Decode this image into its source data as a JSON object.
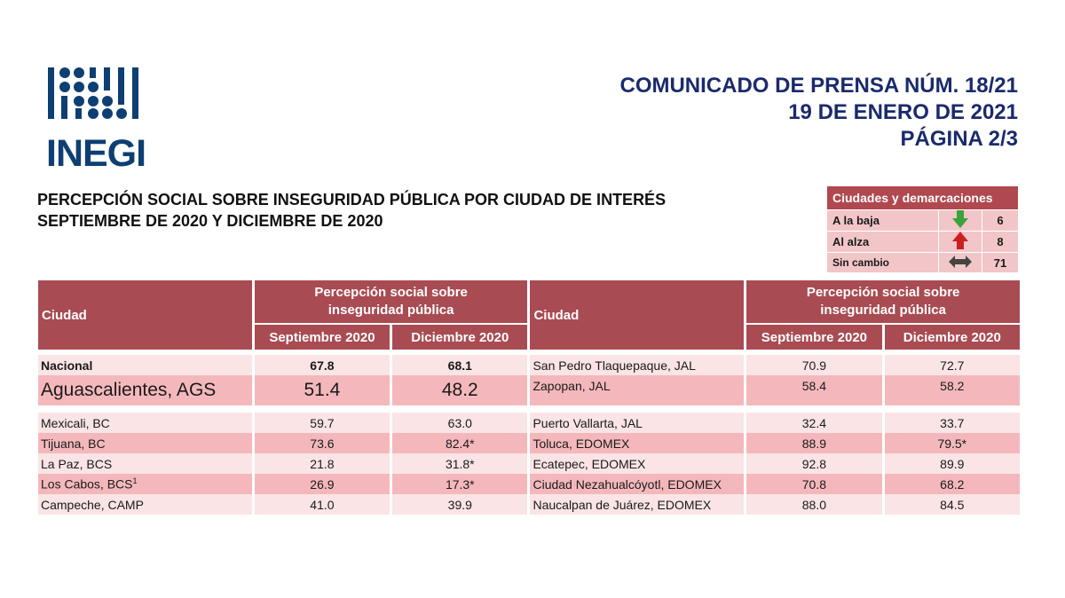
{
  "logo": {
    "text": "INEGI"
  },
  "press": {
    "line1": "COMUNICADO DE PRENSA NÚM. 18/21",
    "line2": "19 DE ENERO DE 2021",
    "line3": "PÁGINA 2/3"
  },
  "title": {
    "line1": "PERCEPCIÓN SOCIAL SOBRE INSEGURIDAD PÚBLICA POR CIUDAD DE INTERÉS",
    "line2": "SEPTIEMBRE DE 2020 Y DICIEMBRE DE 2020"
  },
  "legend": {
    "header": "Ciudades y demarcaciones",
    "rows": [
      {
        "label": "A la baja",
        "icon": "down-arrow-icon",
        "color": "#3aa33a",
        "count": "6"
      },
      {
        "label": "Al alza",
        "icon": "up-arrow-icon",
        "color": "#cc1f1f",
        "count": "8"
      },
      {
        "label": "Sin cambio",
        "icon": "double-arrow-icon",
        "color": "#444444",
        "count": "71"
      }
    ]
  },
  "table": {
    "city_header": "Ciudad",
    "group_header_1": "Percepción social sobre",
    "group_header_2": "inseguridad pública",
    "col_sep": "Septiembre 2020",
    "col_dec": "Diciembre 2020",
    "left": [
      {
        "city": "Nacional",
        "sep": "67.8",
        "dec": "68.1"
      },
      {
        "city": "Aguascalientes, AGS",
        "sep": "51.4",
        "dec": "48.2"
      },
      {
        "city": "Mexicali, BC",
        "sep": "59.7",
        "dec": "63.0"
      },
      {
        "city": "Tijuana, BC",
        "sep": "73.6",
        "dec": "82.4*"
      },
      {
        "city": "La Paz, BCS",
        "sep": "21.8",
        "dec": "31.8*"
      },
      {
        "city": "Los Cabos, BCS",
        "sup": "1",
        "sep": "26.9",
        "dec": "17.3*"
      },
      {
        "city": "Campeche, CAMP",
        "sep": "41.0",
        "dec": "39.9"
      }
    ],
    "right": [
      {
        "city": "San Pedro Tlaquepaque, JAL",
        "sep": "70.9",
        "dec": "72.7"
      },
      {
        "city": "Zapopan, JAL",
        "sep": "58.4",
        "dec": "58.2"
      },
      {
        "city": "Puerto Vallarta, JAL",
        "sep": "32.4",
        "dec": "33.7"
      },
      {
        "city": "Toluca, EDOMEX",
        "sep": "88.9",
        "dec": "79.5*"
      },
      {
        "city": "Ecatepec, EDOMEX",
        "sep": "92.8",
        "dec": "89.9"
      },
      {
        "city": "Ciudad Nezahualcóyotl, EDOMEX",
        "sep": "70.8",
        "dec": "68.2"
      },
      {
        "city": "Naucalpan de Juárez, EDOMEX",
        "sep": "88.0",
        "dec": "84.5"
      }
    ]
  }
}
